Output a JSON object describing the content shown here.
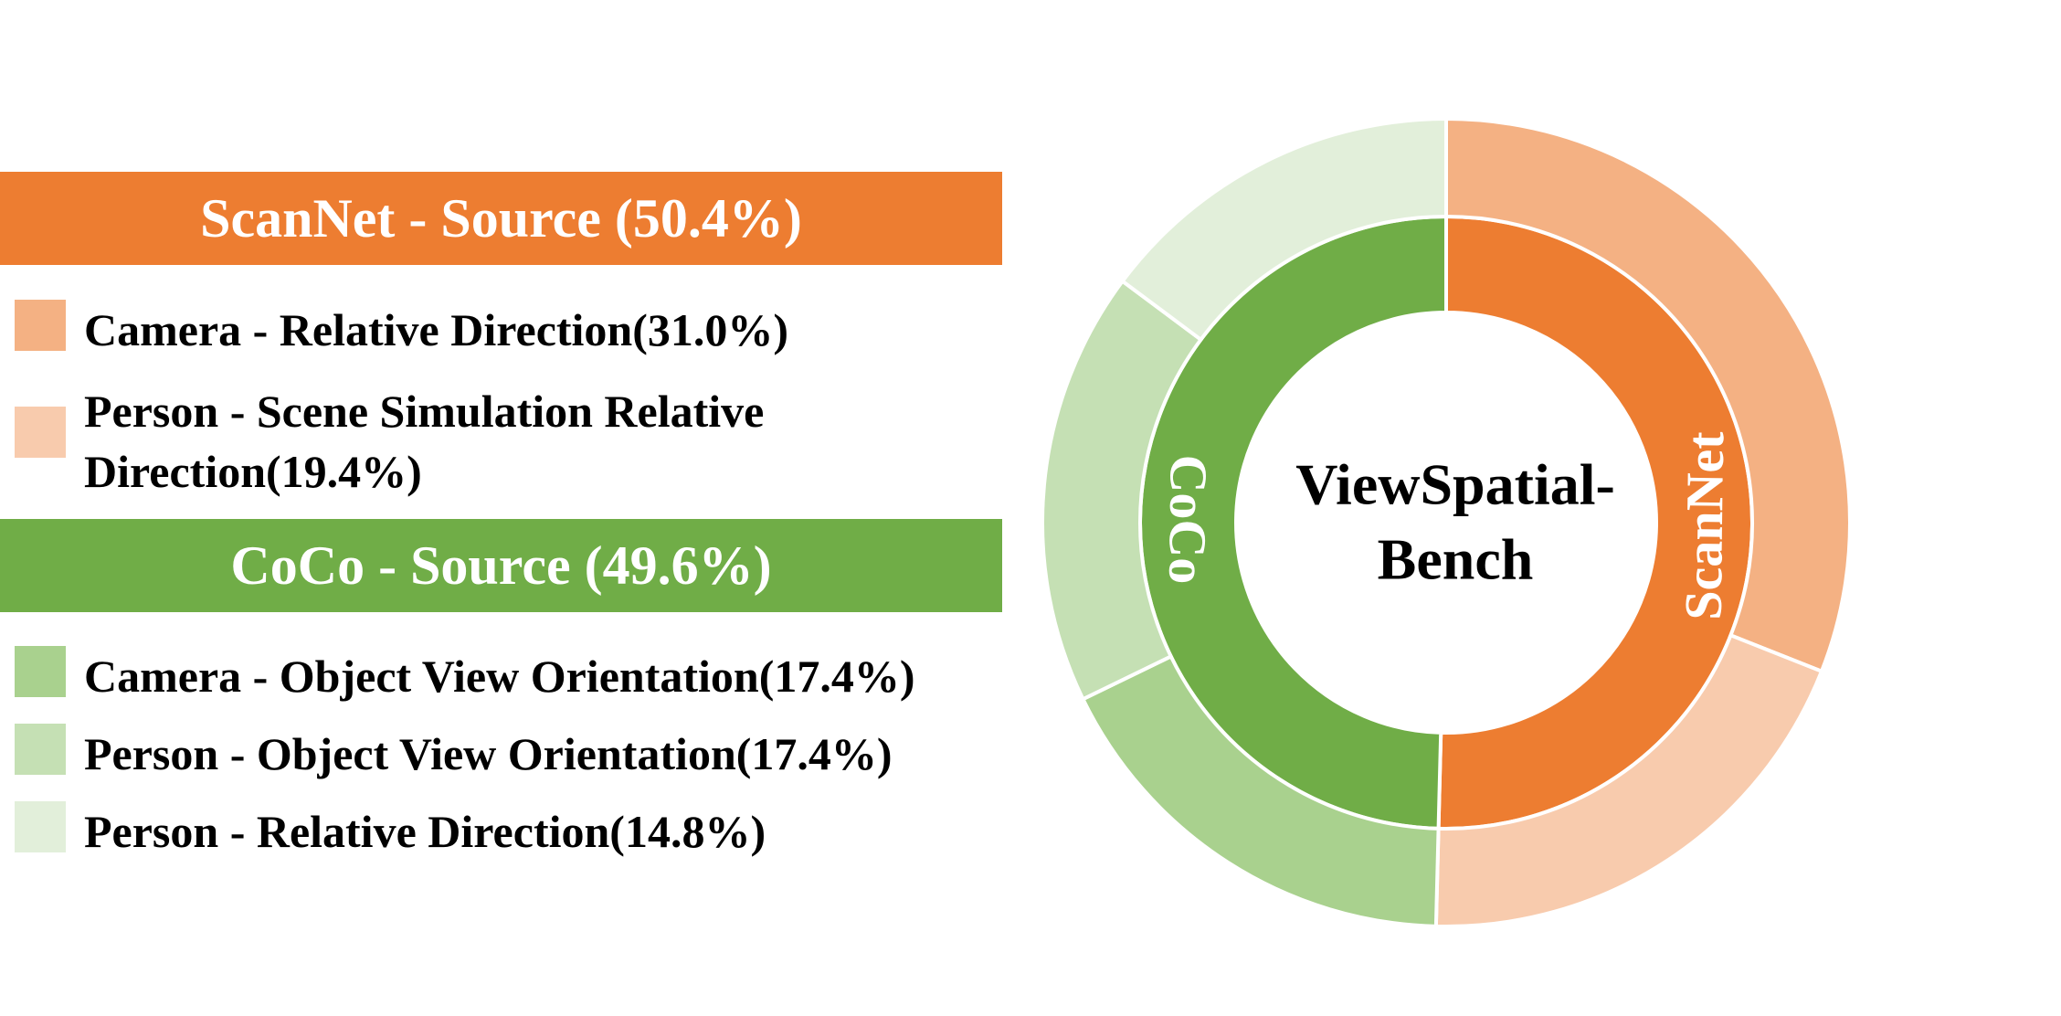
{
  "chart_data": {
    "type": "pie",
    "center_label": [
      "ViewSpatial-",
      "Bench"
    ],
    "groups": [
      {
        "name": "ScanNet",
        "header": "ScanNet - Source (50.4%)",
        "value": 50.4,
        "color": "#ED7D31",
        "items": [
          {
            "label": "Camera - Relative Direction(31.0%)",
            "value": 31.0,
            "color": "#F4B183"
          },
          {
            "label": "Person - Scene Simulation Relative Direction(19.4%)",
            "value": 19.4,
            "color": "#F8CBAD"
          }
        ]
      },
      {
        "name": "CoCo",
        "header": "CoCo - Source (49.6%)",
        "value": 49.6,
        "color": "#70AD47",
        "items": [
          {
            "label": "Camera - Object View Orientation(17.4%)",
            "value": 17.4,
            "color": "#A9D18E"
          },
          {
            "label": "Person - Object View Orientation(17.4%)",
            "value": 17.4,
            "color": "#C5E0B4"
          },
          {
            "label": "Person - Relative Direction(14.8%)",
            "value": 14.8,
            "color": "#E2EFDA"
          }
        ]
      }
    ]
  }
}
